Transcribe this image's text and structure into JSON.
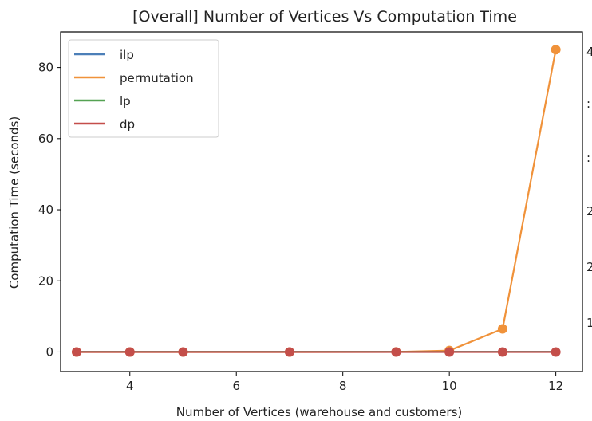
{
  "chart_data": {
    "type": "line",
    "title": "[Overall] Number of Vertices Vs Computation Time",
    "xlabel": "Number of Vertices (warehouse and customers)",
    "ylabel": "Computation Time (seconds)",
    "xlim": [
      2.7,
      12.5
    ],
    "ylim": [
      -5.5,
      90
    ],
    "xticks": [
      4,
      6,
      8,
      10,
      12
    ],
    "yticks": [
      0,
      20,
      40,
      60,
      80
    ],
    "x": [
      3,
      4,
      5,
      7,
      9,
      10,
      11,
      12
    ],
    "grid": false,
    "legend_position": "top-left",
    "series": [
      {
        "name": "ilp",
        "color": "#4c7fb8",
        "values": [
          0.05,
          0.05,
          0.05,
          0.05,
          0.05,
          0.05,
          0.05,
          0.05
        ],
        "markers": false
      },
      {
        "name": "permutation",
        "color": "#f0923a",
        "values": [
          0,
          0,
          0,
          0,
          0.02,
          0.4,
          6.5,
          85
        ],
        "markers": true
      },
      {
        "name": "lp",
        "color": "#55a252",
        "values": [
          0.02,
          0.02,
          0.02,
          0.02,
          0.02,
          0.02,
          0.02,
          0.02
        ],
        "markers": false
      },
      {
        "name": "dp",
        "color": "#c44e4a",
        "values": [
          0,
          0,
          0,
          0,
          0,
          0,
          0,
          0
        ],
        "markers": true
      }
    ],
    "right_axis_partial_ticks": [
      "4",
      ":",
      ":",
      "2",
      "2",
      "1"
    ]
  }
}
